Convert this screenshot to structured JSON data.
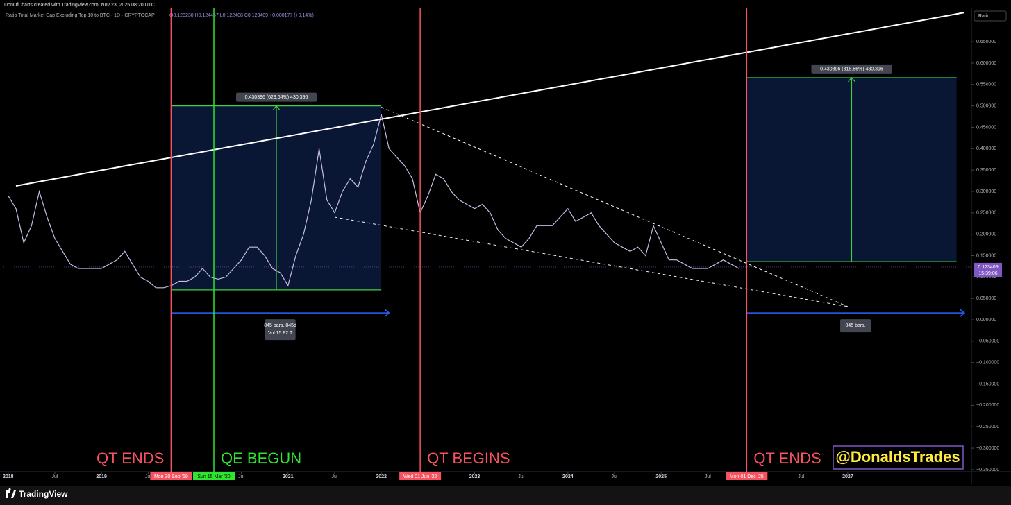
{
  "header": {
    "credit": "DonOfCharts created with TradingView.com, Nov 23, 2025 08:20 UTC",
    "symbol": "Ratio Total Market Cap Excluding Top 10 to BTC · 1D · CRYPTOCAP",
    "ohlc": "O0.123230 H0.124457 L0.122408 C0.123409 +0.000177 (+0.14%)"
  },
  "footer": {
    "brand": "TradingView"
  },
  "chart_data": {
    "type": "line",
    "axis_label": "Ratio",
    "color": "#c9bde6",
    "x": [
      "2018-01",
      "2018-02",
      "2018-03",
      "2018-04",
      "2018-05",
      "2018-06",
      "2018-07",
      "2018-08",
      "2018-09",
      "2018-10",
      "2018-11",
      "2018-12",
      "2019-01",
      "2019-02",
      "2019-03",
      "2019-04",
      "2019-05",
      "2019-06",
      "2019-07",
      "2019-08",
      "2019-09",
      "2019-10",
      "2019-11",
      "2019-12",
      "2020-01",
      "2020-02",
      "2020-03",
      "2020-04",
      "2020-05",
      "2020-06",
      "2020-07",
      "2020-08",
      "2020-09",
      "2020-10",
      "2020-11",
      "2020-12",
      "2021-01",
      "2021-02",
      "2021-03",
      "2021-04",
      "2021-05",
      "2021-06",
      "2021-07",
      "2021-08",
      "2021-09",
      "2021-10",
      "2021-11",
      "2021-12",
      "2022-01",
      "2022-02",
      "2022-03",
      "2022-04",
      "2022-05",
      "2022-06",
      "2022-07",
      "2022-08",
      "2022-09",
      "2022-10",
      "2022-11",
      "2022-12",
      "2023-01",
      "2023-02",
      "2023-03",
      "2023-04",
      "2023-05",
      "2023-06",
      "2023-07",
      "2023-08",
      "2023-09",
      "2023-10",
      "2023-11",
      "2023-12",
      "2024-01",
      "2024-02",
      "2024-03",
      "2024-04",
      "2024-05",
      "2024-06",
      "2024-07",
      "2024-08",
      "2024-09",
      "2024-10",
      "2024-11",
      "2024-12",
      "2025-01",
      "2025-02",
      "2025-03",
      "2025-04",
      "2025-05",
      "2025-06",
      "2025-07",
      "2025-08",
      "2025-09",
      "2025-10",
      "2025-11"
    ],
    "values": [
      0.29,
      0.26,
      0.18,
      0.22,
      0.3,
      0.24,
      0.19,
      0.16,
      0.13,
      0.12,
      0.12,
      0.12,
      0.12,
      0.13,
      0.14,
      0.16,
      0.13,
      0.1,
      0.09,
      0.075,
      0.075,
      0.08,
      0.09,
      0.09,
      0.1,
      0.12,
      0.1,
      0.095,
      0.1,
      0.12,
      0.14,
      0.17,
      0.17,
      0.15,
      0.12,
      0.11,
      0.08,
      0.15,
      0.2,
      0.28,
      0.4,
      0.28,
      0.25,
      0.3,
      0.33,
      0.31,
      0.37,
      0.41,
      0.48,
      0.4,
      0.38,
      0.36,
      0.33,
      0.25,
      0.29,
      0.34,
      0.33,
      0.3,
      0.28,
      0.27,
      0.26,
      0.27,
      0.25,
      0.21,
      0.19,
      0.18,
      0.17,
      0.19,
      0.22,
      0.22,
      0.22,
      0.24,
      0.26,
      0.23,
      0.24,
      0.25,
      0.22,
      0.2,
      0.18,
      0.17,
      0.16,
      0.17,
      0.15,
      0.22,
      0.18,
      0.14,
      0.14,
      0.13,
      0.12,
      0.12,
      0.12,
      0.13,
      0.14,
      0.13,
      0.12
    ],
    "xlim": [
      "2017-12-13",
      "2028-04-26"
    ],
    "xticks": [
      {
        "value": "2018-01",
        "label": "2018"
      },
      {
        "value": "2018-07",
        "label": "Jul"
      },
      {
        "value": "2019-01",
        "label": "2019"
      },
      {
        "value": "2019-07",
        "label": "Jul"
      },
      {
        "value": "2020-07",
        "label": "Jul"
      },
      {
        "value": "2021-01",
        "label": "2021"
      },
      {
        "value": "2021-07",
        "label": "Jul"
      },
      {
        "value": "2022-01",
        "label": "2022"
      },
      {
        "value": "2023-01",
        "label": "2023"
      },
      {
        "value": "2023-07",
        "label": "Jul"
      },
      {
        "value": "2024-01",
        "label": "2024"
      },
      {
        "value": "2024-07",
        "label": "Jul"
      },
      {
        "value": "2025-01",
        "label": "2025"
      },
      {
        "value": "2025-07",
        "label": "Jul"
      },
      {
        "value": "2026-07",
        "label": "Jul"
      },
      {
        "value": "2027-01",
        "label": "2027"
      }
    ],
    "ylim": [
      -0.355,
      0.728
    ],
    "yticks": [
      {
        "value": 0.65,
        "label": "0.650000"
      },
      {
        "value": 0.6,
        "label": "0.600000"
      },
      {
        "value": 0.55,
        "label": "0.550000"
      },
      {
        "value": 0.5,
        "label": "0.500000"
      },
      {
        "value": 0.45,
        "label": "0.450000"
      },
      {
        "value": 0.4,
        "label": "0.400000"
      },
      {
        "value": 0.35,
        "label": "0.350000"
      },
      {
        "value": 0.3,
        "label": "0.300000"
      },
      {
        "value": 0.25,
        "label": "0.250000"
      },
      {
        "value": 0.2,
        "label": "0.200000"
      },
      {
        "value": 0.15,
        "label": "0.150000"
      },
      {
        "value": 0.1,
        "label": "0.100000"
      },
      {
        "value": 0.05,
        "label": "0.050000"
      },
      {
        "value": 0,
        "label": "0.000000"
      },
      {
        "value": -0.05,
        "label": "−0.050000"
      },
      {
        "value": -0.1,
        "label": "−0.100000"
      },
      {
        "value": -0.15,
        "label": "−0.150000"
      },
      {
        "value": -0.2,
        "label": "−0.200000"
      },
      {
        "value": -0.25,
        "label": "−0.250000"
      },
      {
        "value": -0.3,
        "label": "−0.300000"
      },
      {
        "value": -0.35,
        "label": "−0.350000"
      }
    ],
    "last_price": {
      "value": 0.123409,
      "countdown": "15:39:06",
      "color": "#7e57c2"
    },
    "events": [
      {
        "x": "2019-09-30",
        "date_label": "Mon 30 Sep '19",
        "label": "QT ENDS",
        "color": "#f7525f"
      },
      {
        "x": "2020-03-15",
        "date_label": "Sun 15 Mar '20",
        "label": "QE BEGUN",
        "color": "#2ee62e"
      },
      {
        "x": "2022-06-01",
        "date_label": "Wed 01 Jun '22",
        "label": "QT BEGINS",
        "color": "#f7525f"
      },
      {
        "x": "2025-12-01",
        "date_label": "Mon 01 Dec '25",
        "label": "QT ENDS",
        "color": "#f7525f"
      }
    ],
    "trend_line": {
      "x": [
        "2018-02",
        "2028-04"
      ],
      "values": [
        0.313,
        0.718
      ],
      "color": "#ffffff"
    },
    "wedge": [
      {
        "x": [
          "2022-01",
          "2027-01"
        ],
        "values": [
          0.497,
          0.031
        ]
      },
      {
        "x": [
          "2021-07",
          "2027-01"
        ],
        "values": [
          0.24,
          0.031
        ]
      }
    ],
    "measures": [
      {
        "x": [
          "2019-10",
          "2022-01"
        ],
        "values": [
          0.07,
          0.5
        ],
        "label": "0.430396 (629.64%) 430,396"
      },
      {
        "x": [
          "2025-12",
          "2028-03"
        ],
        "values": [
          0.136,
          0.566
        ],
        "label": "0.430396 (318.56%) 430,396"
      }
    ],
    "ranges": [
      {
        "x": [
          "2019-10",
          "2022-02"
        ],
        "value": 0.016,
        "labels": [
          "845 bars, 845d",
          "Vol 15.82 T"
        ]
      },
      {
        "x": [
          "2025-12",
          "2028-04"
        ],
        "value": 0.016,
        "labels": [
          "845 bars,"
        ]
      }
    ],
    "watermark": "@DonaldsTrades"
  }
}
